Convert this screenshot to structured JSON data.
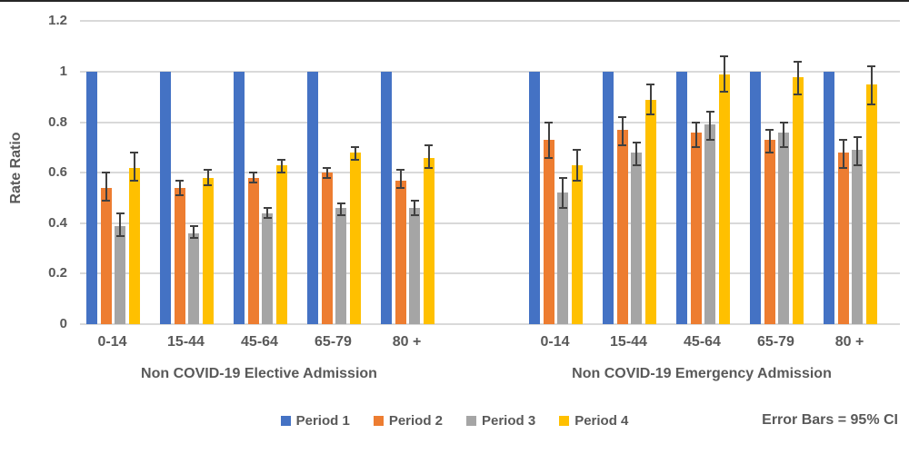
{
  "chart_data": {
    "type": "bar",
    "title": "",
    "ylabel": "Rate Ratio",
    "ylim": [
      0,
      1.2
    ],
    "ytick_values": [
      0,
      0.2,
      0.4,
      0.6,
      0.8,
      1,
      1.2
    ],
    "ytick_labels": [
      "0",
      "0.2",
      "0.4",
      "0.6",
      "0.8",
      "1",
      "1.2"
    ],
    "grid": true,
    "legend_position": "bottom",
    "note": "Error Bars = 95% CI",
    "error_bars": "95% CI",
    "sections": [
      {
        "label": "Non COVID-19 Elective Admission",
        "categories": [
          "0-14",
          "15-44",
          "45-64",
          "65-79",
          "80 +"
        ],
        "series": [
          {
            "name": "Period 1",
            "color": "#4472C4",
            "values": [
              1,
              1,
              1,
              1,
              1
            ],
            "ci_low": null,
            "ci_high": null
          },
          {
            "name": "Period 2",
            "color": "#ED7D31",
            "values": [
              0.54,
              0.54,
              0.58,
              0.6,
              0.57
            ],
            "ci_low": [
              0.49,
              0.51,
              0.56,
              0.58,
              0.54
            ],
            "ci_high": [
              0.6,
              0.57,
              0.6,
              0.62,
              0.61
            ]
          },
          {
            "name": "Period 3",
            "color": "#A5A5A5",
            "values": [
              0.39,
              0.36,
              0.44,
              0.46,
              0.46
            ],
            "ci_low": [
              0.35,
              0.34,
              0.42,
              0.43,
              0.43
            ],
            "ci_high": [
              0.44,
              0.39,
              0.46,
              0.48,
              0.49
            ]
          },
          {
            "name": "Period 4",
            "color": "#FFC000",
            "values": [
              0.62,
              0.58,
              0.63,
              0.68,
              0.66
            ],
            "ci_low": [
              0.57,
              0.55,
              0.6,
              0.65,
              0.62
            ],
            "ci_high": [
              0.68,
              0.61,
              0.65,
              0.7,
              0.71
            ]
          }
        ]
      },
      {
        "label": "Non COVID-19 Emergency Admission",
        "categories": [
          "0-14",
          "15-44",
          "45-64",
          "65-79",
          "80 +"
        ],
        "series": [
          {
            "name": "Period 1",
            "color": "#4472C4",
            "values": [
              1,
              1,
              1,
              1,
              1
            ],
            "ci_low": null,
            "ci_high": null
          },
          {
            "name": "Period 2",
            "color": "#ED7D31",
            "values": [
              0.73,
              0.77,
              0.76,
              0.73,
              0.68
            ],
            "ci_low": [
              0.66,
              0.71,
              0.7,
              0.68,
              0.62
            ],
            "ci_high": [
              0.8,
              0.82,
              0.8,
              0.77,
              0.73
            ]
          },
          {
            "name": "Period 3",
            "color": "#A5A5A5",
            "values": [
              0.52,
              0.68,
              0.79,
              0.76,
              0.69
            ],
            "ci_low": [
              0.46,
              0.63,
              0.73,
              0.7,
              0.63
            ],
            "ci_high": [
              0.58,
              0.72,
              0.84,
              0.8,
              0.74
            ]
          },
          {
            "name": "Period 4",
            "color": "#FFC000",
            "values": [
              0.63,
              0.89,
              0.99,
              0.98,
              0.95
            ],
            "ci_low": [
              0.57,
              0.83,
              0.92,
              0.91,
              0.87
            ],
            "ci_high": [
              0.69,
              0.95,
              1.06,
              1.04,
              1.02
            ]
          }
        ]
      }
    ]
  },
  "legend": {
    "items": [
      {
        "label": "Period 1",
        "color": "#4472C4"
      },
      {
        "label": "Period 2",
        "color": "#ED7D31"
      },
      {
        "label": "Period 3",
        "color": "#A5A5A5"
      },
      {
        "label": "Period 4",
        "color": "#FFC000"
      }
    ]
  },
  "colors": {
    "period1": "#4472C4",
    "period2": "#ED7D31",
    "period3": "#A5A5A5",
    "period4": "#FFC000",
    "text": "#595959",
    "gridline": "#D9D9D9",
    "error_bar": "#404040",
    "background": "#FFFFFF"
  }
}
